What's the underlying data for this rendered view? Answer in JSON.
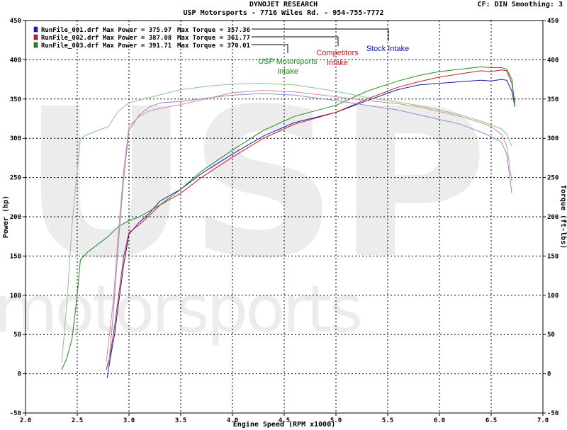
{
  "header": {
    "title": "DYNOJET RESEARCH",
    "subtitle": "USP Motorsports - 7716 Wiles Rd. - 954-755-7772",
    "settings": "CF: DIN  Smoothing: 3"
  },
  "watermark": {
    "line1": "USP",
    "line2": "motorsports"
  },
  "chart_data": {
    "type": "line",
    "xlabel": "Engine Speed (RPM x1000)",
    "ylabel": "Power (hp)",
    "y2label": "Torque (ft-lbs)",
    "xlim": [
      2.0,
      7.0
    ],
    "ylim": [
      -50,
      450
    ],
    "xticks": [
      "2.0",
      "2.5",
      "3.0",
      "3.5",
      "4.0",
      "4.5",
      "5.0",
      "5.5",
      "6.0",
      "6.5",
      "7.0"
    ],
    "yticks": [
      "-50",
      "0",
      "50",
      "100",
      "150",
      "200",
      "250",
      "300",
      "350",
      "400",
      "450"
    ],
    "grid": true,
    "legend_position": "top-left",
    "legend": [
      {
        "file": "RunFile_001.drf",
        "power_label": "Max Power = 375.97",
        "torque_label": "Max Torque = 357.36",
        "color": "#1a1ab8"
      },
      {
        "file": "RunFile_002.drf",
        "power_label": "Max Power = 387.08",
        "torque_label": "Max Torque = 361.77",
        "color": "#c81e1e"
      },
      {
        "file": "RunFile_003.drf",
        "power_label": "Max Power = 391.71",
        "torque_label": "Max Torque = 370.01",
        "color": "#1e8a1e"
      }
    ],
    "annotations": [
      {
        "lines": [
          "USP Motorsports",
          "Intake"
        ],
        "color": "#1a8a1a"
      },
      {
        "lines": [
          "Competitors",
          "Intake"
        ],
        "color": "#e01010"
      },
      {
        "lines": [
          "Stock Intake"
        ],
        "color": "#1010c8"
      }
    ],
    "series": [
      {
        "name": "RunFile_001.drf Power",
        "color": "#1a1ab8",
        "x": [
          2.79,
          2.82,
          2.86,
          2.9,
          2.95,
          3.0,
          3.1,
          3.2,
          3.3,
          3.5,
          3.7,
          4.0,
          4.3,
          4.6,
          5.0,
          5.3,
          5.6,
          5.8,
          6.0,
          6.2,
          6.4,
          6.5,
          6.6,
          6.65,
          6.7,
          6.73
        ],
        "y": [
          -5,
          20,
          50,
          90,
          140,
          178,
          193,
          205,
          220,
          235,
          255,
          280,
          303,
          320,
          333,
          348,
          362,
          368,
          370,
          372,
          374,
          373,
          375,
          374,
          360,
          340
        ]
      },
      {
        "name": "RunFile_002.drf Power",
        "color": "#c81e1e",
        "x": [
          2.78,
          2.82,
          2.86,
          2.9,
          2.95,
          3.0,
          3.1,
          3.2,
          3.3,
          3.5,
          3.7,
          4.0,
          4.3,
          4.6,
          5.0,
          5.3,
          5.6,
          5.8,
          6.0,
          6.2,
          6.4,
          6.5,
          6.6,
          6.65,
          6.7,
          6.73
        ],
        "y": [
          5,
          25,
          60,
          100,
          150,
          180,
          190,
          202,
          215,
          230,
          250,
          276,
          300,
          318,
          333,
          350,
          365,
          372,
          378,
          382,
          386,
          385,
          387,
          386,
          370,
          345
        ]
      },
      {
        "name": "RunFile_003.drf Power",
        "color": "#1e8a1e",
        "x": [
          2.35,
          2.4,
          2.45,
          2.5,
          2.53,
          2.6,
          2.7,
          2.8,
          2.9,
          3.0,
          3.1,
          3.3,
          3.5,
          3.7,
          4.0,
          4.3,
          4.6,
          5.0,
          5.3,
          5.6,
          5.8,
          6.0,
          6.2,
          6.4,
          6.5,
          6.6,
          6.65,
          6.7,
          6.73
        ],
        "y": [
          5,
          20,
          45,
          100,
          145,
          155,
          165,
          175,
          188,
          195,
          200,
          215,
          235,
          258,
          285,
          310,
          328,
          342,
          360,
          373,
          380,
          385,
          388,
          391,
          390,
          390,
          388,
          375,
          340
        ]
      },
      {
        "name": "RunFile_001.drf Torque",
        "color": "#8a8ad8",
        "x": [
          2.8,
          2.85,
          2.9,
          2.95,
          3.0,
          3.1,
          3.2,
          3.3,
          3.5,
          3.8,
          4.0,
          4.3,
          4.6,
          5.0,
          5.3,
          5.6,
          5.8,
          6.0,
          6.2,
          6.4,
          6.5,
          6.6,
          6.65,
          6.7
        ],
        "y": [
          5,
          80,
          170,
          250,
          310,
          330,
          340,
          345,
          347,
          352,
          355,
          357,
          355,
          348,
          342,
          336,
          330,
          324,
          318,
          308,
          302,
          295,
          280,
          230
        ]
      },
      {
        "name": "RunFile_002.drf Torque",
        "color": "#d88a8a",
        "x": [
          2.78,
          2.85,
          2.9,
          2.95,
          3.0,
          3.1,
          3.2,
          3.3,
          3.5,
          3.8,
          4.0,
          4.3,
          4.6,
          5.0,
          5.3,
          5.6,
          5.8,
          6.0,
          6.2,
          6.4,
          6.5,
          6.6,
          6.65,
          6.7
        ],
        "y": [
          15,
          95,
          185,
          260,
          315,
          328,
          335,
          338,
          343,
          352,
          358,
          361,
          359,
          353,
          348,
          344,
          340,
          334,
          328,
          320,
          315,
          305,
          290,
          245
        ]
      },
      {
        "name": "RunFile_003.drf Torque",
        "color": "#8ac88a",
        "x": [
          2.35,
          2.4,
          2.45,
          2.5,
          2.53,
          2.6,
          2.8,
          2.9,
          3.0,
          3.2,
          3.5,
          3.8,
          4.0,
          4.3,
          4.6,
          5.0,
          5.3,
          5.6,
          5.8,
          6.0,
          6.2,
          6.4,
          6.5,
          6.6,
          6.65,
          6.7
        ],
        "y": [
          15,
          90,
          190,
          260,
          300,
          305,
          315,
          335,
          345,
          352,
          362,
          367,
          369,
          370,
          368,
          360,
          352,
          346,
          342,
          336,
          330,
          322,
          317,
          312,
          305,
          290
        ]
      }
    ]
  }
}
